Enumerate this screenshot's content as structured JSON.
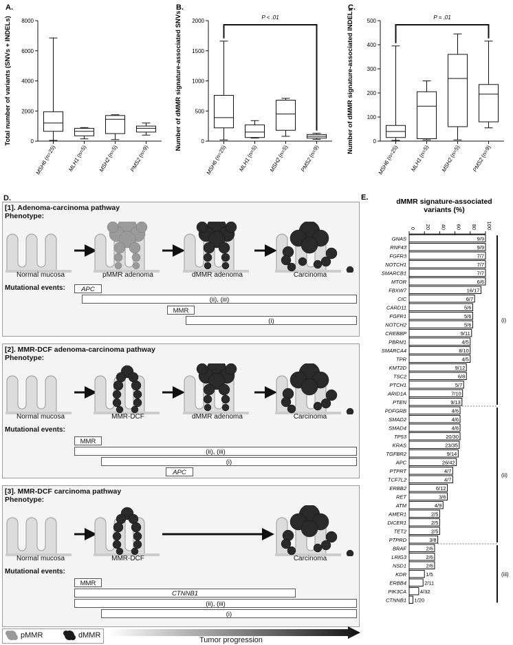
{
  "panels": {
    "a": {
      "label": "A.",
      "ylabel": "Total number of variants (SNVs + INDELs)",
      "yticks": [
        "0",
        "2000",
        "4000",
        "6000",
        "8000"
      ],
      "ymax": 8000,
      "groups": [
        {
          "name": "MSH6",
          "n": " (n=25)",
          "min": 50,
          "q1": 650,
          "med": 1200,
          "q3": 1950,
          "max": 6850
        },
        {
          "name": "MLH1",
          "n": " (n=5)",
          "min": 150,
          "q1": 350,
          "med": 650,
          "q3": 850,
          "max": 900
        },
        {
          "name": "MSH2",
          "n": " (n=5)",
          "min": 100,
          "q1": 500,
          "med": 1450,
          "q3": 1700,
          "max": 1750
        },
        {
          "name": "PMS2",
          "n": " (n=9)",
          "min": 400,
          "q1": 600,
          "med": 850,
          "q3": 1000,
          "max": 1200
        }
      ]
    },
    "b": {
      "label": "B.",
      "ylabel": "Number of dMMR signature-associated SNVs",
      "yticks": [
        "0",
        "500",
        "1000",
        "1500",
        "2000"
      ],
      "ymax": 2000,
      "pvalue": "P < .01",
      "groups": [
        {
          "name": "MSH6",
          "n": " (n=25)",
          "min": 20,
          "q1": 220,
          "med": 390,
          "q3": 760,
          "max": 1660
        },
        {
          "name": "MLH1",
          "n": " (n=5)",
          "min": 50,
          "q1": 60,
          "med": 150,
          "q3": 270,
          "max": 340
        },
        {
          "name": "MSH2",
          "n": " (n=5)",
          "min": 80,
          "q1": 180,
          "med": 450,
          "q3": 680,
          "max": 710
        },
        {
          "name": "PMS2",
          "n": " (n=9)",
          "min": 30,
          "q1": 50,
          "med": 80,
          "q3": 110,
          "max": 130
        }
      ]
    },
    "c": {
      "label": "C.",
      "ylabel": "Number of dMMR signature-associated INDELs",
      "yticks": [
        "0",
        "100",
        "200",
        "300",
        "400",
        "500"
      ],
      "ymax": 500,
      "pvalue": "P = .01",
      "groups": [
        {
          "name": "MSH6",
          "n": " (n=25)",
          "min": 3,
          "q1": 15,
          "med": 40,
          "q3": 65,
          "max": 395
        },
        {
          "name": "MLH1",
          "n": " (n=5)",
          "min": 5,
          "q1": 10,
          "med": 145,
          "q3": 205,
          "max": 250
        },
        {
          "name": "MSH2",
          "n": " (n=5)",
          "min": 5,
          "q1": 60,
          "med": 260,
          "q3": 360,
          "max": 445
        },
        {
          "name": "PMS2",
          "n": " (n=9)",
          "min": 55,
          "q1": 80,
          "med": 195,
          "q3": 235,
          "max": 415
        }
      ]
    }
  },
  "panel_d": {
    "label": "D.",
    "s1": {
      "title": "[1]. Adenoma-carcinoma pathway",
      "phenotype": "Phenotype:",
      "stages": [
        "Normal mucosa",
        "pMMR adenoma",
        "dMMR adenoma",
        "Carcinoma"
      ],
      "events_label": "Mutational events:",
      "events": [
        "APC",
        "(ii), (iii)",
        "MMR",
        "(i)"
      ]
    },
    "s2": {
      "title": "[2]. MMR-DCF adenoma-carcinoma pathway",
      "phenotype": "Phenotype:",
      "stages": [
        "Normal mucosa",
        "MMR-DCF",
        "dMMR adenoma",
        "Carcinoma"
      ],
      "events_label": "Mutational events:",
      "events": [
        "MMR",
        "(ii), (iii)",
        "(i)",
        "APC"
      ]
    },
    "s3": {
      "title": "[3]. MMR-DCF carcinoma pathway",
      "phenotype": "Phenotype:",
      "stages": [
        "Normal mucosa",
        "MMR-DCF",
        "Carcinoma"
      ],
      "events_label": "Mutational events:",
      "events": [
        "MMR",
        "CTNNB1",
        "(ii), (iii)",
        "(i)"
      ]
    },
    "legend": {
      "pmmr": "pMMR",
      "dmmr": "dMMR",
      "progression": "Tumor progression"
    }
  },
  "chart_data": {
    "type": "bar",
    "label": "E.",
    "title": "dMMR signature-associated variants (%)",
    "xlim": [
      0,
      100
    ],
    "xticks": [
      "0",
      "20",
      "40",
      "60",
      "80",
      "100"
    ],
    "genes": [
      "GNAS",
      "RNF43",
      "FGFR3",
      "NOTCH1",
      "SMARCB1",
      "MTOR",
      "FBXW7",
      "CIC",
      "CARD11",
      "FGFR1",
      "NOTCH2",
      "CREBBP",
      "PBRM1",
      "SMARCA4",
      "TPR",
      "KMT2D",
      "TSC2",
      "PTCH1",
      "ARID1A",
      "PTEN",
      "PDFGRB",
      "SMAD2",
      "SMAD4",
      "TP53",
      "KRAS",
      "TGFBR2",
      "APC",
      "PTPRT",
      "TCF7L2",
      "ERBB2",
      "RET",
      "ATM",
      "AMER1",
      "DICER1",
      "TET2",
      "PTPRD",
      "BRAF",
      "LRIG3",
      "NSD1",
      "KDR",
      "ERBB4",
      "PIK3CA",
      "CTNNB1"
    ],
    "values": [
      100,
      100,
      100,
      100,
      100,
      100,
      94.1,
      85.7,
      83.3,
      83.3,
      83.3,
      81.8,
      80,
      80,
      80,
      75,
      75,
      71.4,
      70,
      69.2,
      66.7,
      66.7,
      66.7,
      66.7,
      65.7,
      64.3,
      61.9,
      57.1,
      57.1,
      50,
      50,
      44.4,
      40,
      40,
      40,
      37.5,
      33.3,
      33.3,
      33.3,
      20,
      18.2,
      12.5,
      5
    ],
    "labels": [
      "9/9",
      "9/9",
      "7/7",
      "7/7",
      "7/7",
      "6/6",
      "16/17",
      "6/7",
      "5/6",
      "5/6",
      "5/6",
      "9/11",
      "4/5",
      "8/10",
      "4/5",
      "9/12",
      "6/8",
      "5/7",
      "7/10",
      "9/13",
      "4/6",
      "4/6",
      "4/6",
      "20/30",
      "23/35",
      "9/14",
      "26/42",
      "4/7",
      "4/7",
      "6/12",
      "3/6",
      "4/9",
      "2/5",
      "2/5",
      "2/5",
      "3/8",
      "2/6",
      "2/6",
      "2/6",
      "1/5",
      "2/11",
      "4/32",
      "1/20"
    ],
    "groups": [
      {
        "name": "(i)",
        "start": 0,
        "end": 19
      },
      {
        "name": "(ii)",
        "start": 20,
        "end": 35
      },
      {
        "name": "(iii)",
        "start": 36,
        "end": 42
      }
    ]
  }
}
